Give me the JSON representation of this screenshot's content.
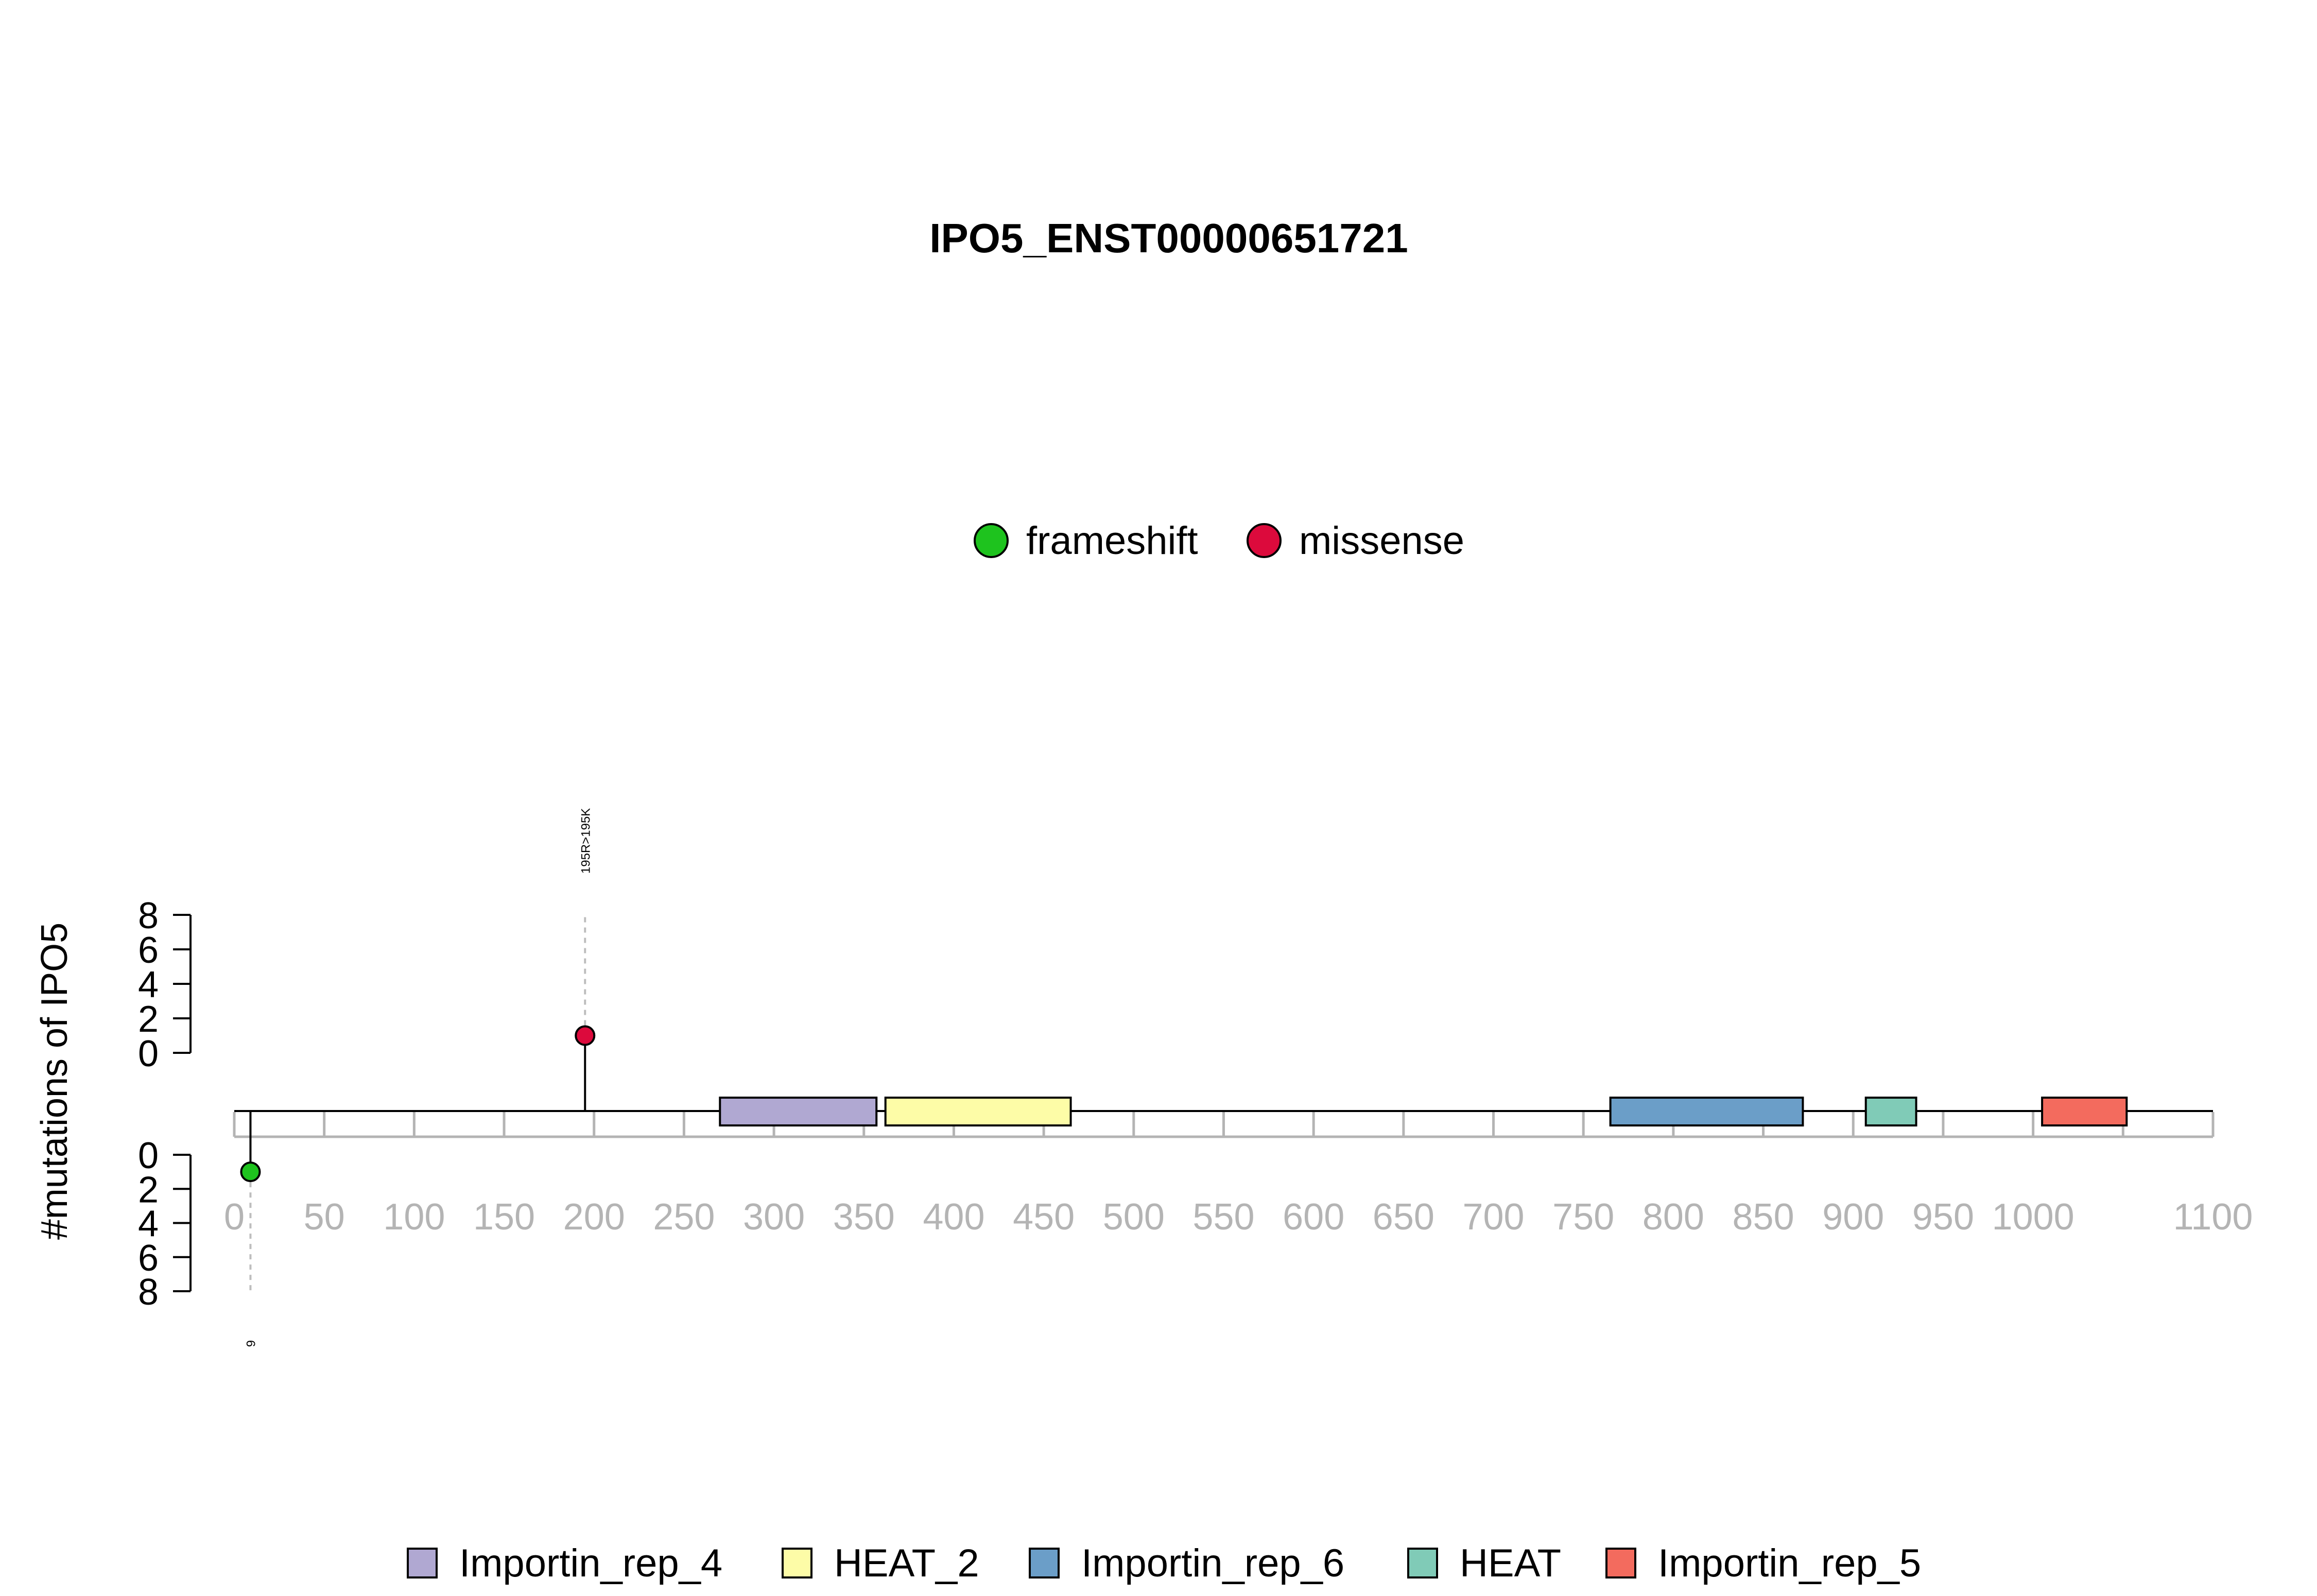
{
  "chart_data": {
    "type": "lollipop",
    "title": "IPO5_ENST00000651721",
    "ylabel": "#mutations of IPO5",
    "x_ticks": [
      0,
      50,
      100,
      150,
      200,
      250,
      300,
      350,
      400,
      450,
      500,
      550,
      600,
      650,
      700,
      750,
      800,
      850,
      900,
      950,
      1000,
      1100
    ],
    "xlim": [
      0,
      1100
    ],
    "y_ticks": [
      0,
      2,
      4,
      6,
      8
    ],
    "ylim": [
      0,
      8
    ],
    "mutation_legend": [
      {
        "label": "frameshift",
        "color": "#1ec31e"
      },
      {
        "label": "missense",
        "color": "#dc0a3c"
      }
    ],
    "mutations": [
      {
        "position": 195,
        "count": 1,
        "type": "missense",
        "side": "top",
        "label": "195R>195K",
        "color": "#dc0a3c"
      },
      {
        "position": 9,
        "count": 1,
        "type": "frameshift",
        "side": "bottom",
        "label": "9",
        "color": "#1ec31e"
      }
    ],
    "domains": [
      {
        "name": "Importin_rep_4",
        "start": 270,
        "end": 357,
        "color": "#b0a8d2"
      },
      {
        "name": "HEAT_2",
        "start": 362,
        "end": 465,
        "color": "#fdfca7"
      },
      {
        "name": "Importin_rep_6",
        "start": 765,
        "end": 872,
        "color": "#6b9ec8"
      },
      {
        "name": "HEAT",
        "start": 907,
        "end": 935,
        "color": "#80cbb7"
      },
      {
        "name": "Importin_rep_5",
        "start": 1005,
        "end": 1052,
        "color": "#f36b5e"
      }
    ],
    "domain_legend": [
      "Importin_rep_4",
      "HEAT_2",
      "Importin_rep_6",
      "HEAT",
      "Importin_rep_5"
    ]
  }
}
